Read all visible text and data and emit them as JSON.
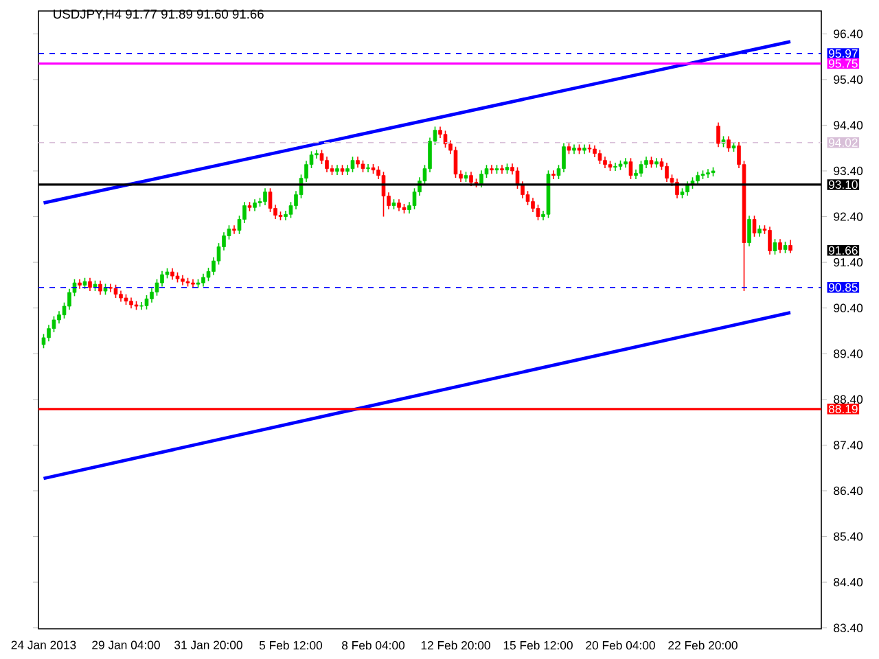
{
  "chart_data": {
    "type": "candlestick",
    "title": "USDJPY,H4 91.77 91.89 91.60 91.66",
    "categories": [
      "24 Jan 2013",
      null,
      null,
      null,
      null,
      null,
      null,
      null,
      null,
      null,
      null,
      null,
      null,
      null,
      null,
      null,
      "29 Jan 04:00",
      null,
      null,
      null,
      null,
      null,
      null,
      null,
      null,
      null,
      null,
      null,
      null,
      null,
      null,
      null,
      "31 Jan 20:00",
      null,
      null,
      null,
      null,
      null,
      null,
      null,
      null,
      null,
      null,
      null,
      null,
      null,
      null,
      null,
      "5 Feb 12:00",
      null,
      null,
      null,
      null,
      null,
      null,
      null,
      null,
      null,
      null,
      null,
      null,
      null,
      null,
      null,
      "8 Feb 04:00",
      null,
      null,
      null,
      null,
      null,
      null,
      null,
      null,
      null,
      null,
      null,
      null,
      null,
      null,
      null,
      "12 Feb 20:00",
      null,
      null,
      null,
      null,
      null,
      null,
      null,
      null,
      null,
      null,
      null,
      null,
      null,
      null,
      null,
      "15 Feb 12:00",
      null,
      null,
      null,
      null,
      null,
      null,
      null,
      null,
      null,
      null,
      null,
      null,
      null,
      null,
      null,
      "20 Feb 04:00",
      null,
      null,
      null,
      null,
      null,
      null,
      null,
      null,
      null,
      null,
      null,
      null,
      null,
      null,
      null,
      "22 Feb 20:00",
      null,
      null,
      null,
      null,
      null,
      null,
      null,
      null,
      null,
      null,
      null,
      null,
      null,
      null,
      null,
      null,
      null
    ],
    "ohlc": [
      [
        89.6,
        89.83,
        89.52,
        89.75
      ],
      [
        89.75,
        90.03,
        89.67,
        89.95
      ],
      [
        89.95,
        90.22,
        89.87,
        90.14
      ],
      [
        90.14,
        90.33,
        90.06,
        90.25
      ],
      [
        90.25,
        90.52,
        90.17,
        90.44
      ],
      [
        90.44,
        90.82,
        90.36,
        90.74
      ],
      [
        90.74,
        91.03,
        90.66,
        90.95
      ],
      [
        90.95,
        91.03,
        90.82,
        90.9
      ],
      [
        90.9,
        91.06,
        90.82,
        90.98
      ],
      [
        90.98,
        91.06,
        90.77,
        90.85
      ],
      [
        90.85,
        91.0,
        90.77,
        90.92
      ],
      [
        90.92,
        91.0,
        90.69,
        90.77
      ],
      [
        90.77,
        90.93,
        90.69,
        90.85
      ],
      [
        90.85,
        90.93,
        90.75,
        90.83
      ],
      [
        90.83,
        90.91,
        90.62,
        90.7
      ],
      [
        90.7,
        90.78,
        90.54,
        90.62
      ],
      [
        90.62,
        90.7,
        90.47,
        90.55
      ],
      [
        90.55,
        90.63,
        90.39,
        90.47
      ],
      [
        90.47,
        90.55,
        90.36,
        90.44
      ],
      [
        90.44,
        90.53,
        90.36,
        90.45
      ],
      [
        90.45,
        90.68,
        90.37,
        90.6
      ],
      [
        90.6,
        90.83,
        90.52,
        90.75
      ],
      [
        90.75,
        91.03,
        90.67,
        90.95
      ],
      [
        90.95,
        91.21,
        90.87,
        91.13
      ],
      [
        91.13,
        91.27,
        91.05,
        91.19
      ],
      [
        91.19,
        91.27,
        91.02,
        91.1
      ],
      [
        91.1,
        91.18,
        90.96,
        91.04
      ],
      [
        91.04,
        91.12,
        90.9,
        90.98
      ],
      [
        90.98,
        91.06,
        90.87,
        90.95
      ],
      [
        90.95,
        91.03,
        90.84,
        90.92
      ],
      [
        90.92,
        91.03,
        90.84,
        90.95
      ],
      [
        90.95,
        91.15,
        90.87,
        91.07
      ],
      [
        91.07,
        91.28,
        90.99,
        91.2
      ],
      [
        91.2,
        91.51,
        91.12,
        91.43
      ],
      [
        91.43,
        91.82,
        91.35,
        91.74
      ],
      [
        91.74,
        92.06,
        91.66,
        91.98
      ],
      [
        91.98,
        92.21,
        91.9,
        92.13
      ],
      [
        92.13,
        92.21,
        92.02,
        92.1
      ],
      [
        92.1,
        92.42,
        92.02,
        92.34
      ],
      [
        92.34,
        92.72,
        92.26,
        92.64
      ],
      [
        92.64,
        92.72,
        92.52,
        92.6
      ],
      [
        92.6,
        92.78,
        92.52,
        92.7
      ],
      [
        92.7,
        92.81,
        92.62,
        92.73
      ],
      [
        92.73,
        93.02,
        92.65,
        92.94
      ],
      [
        92.94,
        93.02,
        92.5,
        92.58
      ],
      [
        92.58,
        92.66,
        92.35,
        92.43
      ],
      [
        92.43,
        92.51,
        92.32,
        92.4
      ],
      [
        92.4,
        92.53,
        92.32,
        92.45
      ],
      [
        92.45,
        92.72,
        92.37,
        92.64
      ],
      [
        92.64,
        92.96,
        92.56,
        92.88
      ],
      [
        92.88,
        93.32,
        92.8,
        93.24
      ],
      [
        93.24,
        93.62,
        93.16,
        93.54
      ],
      [
        93.54,
        93.83,
        93.46,
        93.75
      ],
      [
        93.75,
        93.86,
        93.67,
        93.78
      ],
      [
        93.78,
        93.86,
        93.55,
        93.63
      ],
      [
        93.63,
        93.71,
        93.37,
        93.45
      ],
      [
        93.45,
        93.53,
        93.31,
        93.39
      ],
      [
        93.39,
        93.53,
        93.31,
        93.45
      ],
      [
        93.45,
        93.53,
        93.31,
        93.39
      ],
      [
        93.39,
        93.53,
        93.31,
        93.45
      ],
      [
        93.45,
        93.71,
        93.37,
        93.63
      ],
      [
        93.63,
        93.71,
        93.47,
        93.55
      ],
      [
        93.55,
        93.63,
        93.37,
        93.45
      ],
      [
        93.45,
        93.55,
        93.37,
        93.47
      ],
      [
        93.47,
        93.55,
        93.34,
        93.42
      ],
      [
        93.42,
        93.5,
        93.22,
        93.3
      ],
      [
        93.3,
        93.38,
        92.4,
        92.85
      ],
      [
        92.85,
        92.93,
        92.56,
        92.64
      ],
      [
        92.64,
        92.78,
        92.56,
        92.7
      ],
      [
        92.7,
        92.78,
        92.52,
        92.6
      ],
      [
        92.6,
        92.68,
        92.47,
        92.55
      ],
      [
        92.55,
        92.72,
        92.47,
        92.64
      ],
      [
        92.64,
        93.02,
        92.56,
        92.94
      ],
      [
        92.94,
        93.26,
        92.86,
        93.18
      ],
      [
        93.18,
        93.53,
        93.1,
        93.45
      ],
      [
        93.45,
        94.13,
        93.37,
        94.05
      ],
      [
        94.05,
        94.37,
        93.97,
        94.29
      ],
      [
        94.29,
        94.37,
        94.12,
        94.2
      ],
      [
        94.2,
        94.28,
        93.91,
        93.99
      ],
      [
        93.99,
        94.07,
        93.77,
        93.85
      ],
      [
        93.85,
        93.93,
        93.25,
        93.33
      ],
      [
        93.33,
        93.41,
        93.16,
        93.24
      ],
      [
        93.24,
        93.38,
        93.16,
        93.3
      ],
      [
        93.3,
        93.38,
        93.07,
        93.15
      ],
      [
        93.15,
        93.23,
        93.04,
        93.12
      ],
      [
        93.12,
        93.41,
        93.04,
        93.33
      ],
      [
        93.33,
        93.53,
        93.25,
        93.45
      ],
      [
        93.45,
        93.53,
        93.34,
        93.42
      ],
      [
        93.42,
        93.53,
        93.34,
        93.45
      ],
      [
        93.45,
        93.53,
        93.34,
        93.42
      ],
      [
        93.42,
        93.56,
        93.34,
        93.48
      ],
      [
        93.48,
        93.56,
        93.32,
        93.4
      ],
      [
        93.4,
        93.48,
        93.01,
        93.09
      ],
      [
        93.09,
        93.17,
        92.8,
        92.88
      ],
      [
        92.88,
        92.96,
        92.65,
        92.73
      ],
      [
        92.73,
        92.81,
        92.5,
        92.58
      ],
      [
        92.58,
        92.66,
        92.32,
        92.4
      ],
      [
        92.4,
        92.53,
        92.32,
        92.45
      ],
      [
        92.45,
        93.41,
        92.37,
        93.33
      ],
      [
        93.33,
        93.41,
        93.22,
        93.3
      ],
      [
        93.3,
        93.53,
        93.22,
        93.45
      ],
      [
        93.45,
        94.01,
        93.37,
        93.93
      ],
      [
        93.93,
        94.01,
        93.77,
        93.85
      ],
      [
        93.85,
        93.98,
        93.77,
        93.9
      ],
      [
        93.9,
        93.98,
        93.77,
        93.85
      ],
      [
        93.85,
        93.98,
        93.77,
        93.9
      ],
      [
        93.9,
        93.98,
        93.8,
        93.88
      ],
      [
        93.88,
        93.96,
        93.7,
        93.78
      ],
      [
        93.78,
        93.86,
        93.55,
        93.63
      ],
      [
        93.63,
        93.71,
        93.46,
        93.54
      ],
      [
        93.54,
        93.62,
        93.4,
        93.48
      ],
      [
        93.48,
        93.58,
        93.4,
        93.5
      ],
      [
        93.5,
        93.63,
        93.42,
        93.55
      ],
      [
        93.55,
        93.68,
        93.47,
        93.6
      ],
      [
        93.6,
        93.68,
        93.22,
        93.3
      ],
      [
        93.3,
        93.43,
        93.22,
        93.35
      ],
      [
        93.35,
        93.62,
        93.27,
        93.54
      ],
      [
        93.54,
        93.71,
        93.46,
        93.63
      ],
      [
        93.63,
        93.71,
        93.47,
        93.55
      ],
      [
        93.55,
        93.68,
        93.47,
        93.6
      ],
      [
        93.6,
        93.68,
        93.42,
        93.5
      ],
      [
        93.5,
        93.58,
        93.16,
        93.24
      ],
      [
        93.24,
        93.32,
        93.07,
        93.15
      ],
      [
        93.15,
        93.23,
        92.8,
        92.88
      ],
      [
        92.88,
        93.02,
        92.8,
        92.94
      ],
      [
        92.94,
        93.17,
        92.86,
        93.09
      ],
      [
        93.09,
        93.26,
        93.01,
        93.18
      ],
      [
        93.18,
        93.38,
        93.1,
        93.3
      ],
      [
        93.3,
        93.41,
        93.22,
        93.33
      ],
      [
        93.33,
        93.44,
        93.25,
        93.36
      ],
      [
        93.36,
        93.48,
        93.28,
        93.4
      ],
      [
        94.38,
        94.46,
        93.92,
        94.0
      ],
      [
        94.0,
        94.16,
        93.92,
        94.08
      ],
      [
        94.08,
        94.16,
        93.82,
        93.9
      ],
      [
        93.9,
        94.03,
        93.82,
        93.95
      ],
      [
        93.95,
        94.03,
        93.46,
        93.54
      ],
      [
        93.54,
        93.62,
        90.77,
        91.83
      ],
      [
        91.83,
        92.42,
        91.75,
        92.34
      ],
      [
        92.34,
        92.42,
        91.96,
        92.04
      ],
      [
        92.04,
        92.21,
        91.96,
        92.13
      ],
      [
        92.13,
        92.21,
        92.02,
        92.1
      ],
      [
        92.1,
        92.18,
        91.57,
        91.65
      ],
      [
        91.65,
        91.91,
        91.57,
        91.83
      ],
      [
        91.83,
        91.91,
        91.6,
        91.68
      ],
      [
        91.68,
        91.85,
        91.6,
        91.77
      ],
      [
        91.77,
        91.89,
        91.6,
        91.66
      ]
    ],
    "series": [
      {
        "type": "line",
        "color": "#0000ff",
        "values": [
          92.7,
          null,
          null,
          null,
          null,
          null,
          null,
          null,
          null,
          null,
          null,
          null,
          null,
          null,
          null,
          null,
          null,
          null,
          null,
          null,
          null,
          null,
          null,
          null,
          null,
          null,
          null,
          null,
          null,
          null,
          null,
          null,
          null,
          null,
          null,
          null,
          null,
          null,
          null,
          null,
          null,
          null,
          null,
          null,
          null,
          null,
          null,
          null,
          null,
          null,
          null,
          null,
          null,
          null,
          null,
          null,
          null,
          null,
          null,
          null,
          null,
          null,
          null,
          null,
          null,
          null,
          null,
          null,
          null,
          null,
          null,
          null,
          null,
          null,
          null,
          null,
          null,
          null,
          null,
          null,
          null,
          null,
          null,
          null,
          null,
          null,
          null,
          null,
          null,
          null,
          null,
          null,
          null,
          null,
          null,
          null,
          null,
          null,
          null,
          null,
          null,
          null,
          null,
          null,
          null,
          null,
          null,
          null,
          null,
          null,
          null,
          null,
          null,
          null,
          null,
          null,
          null,
          null,
          null,
          null,
          null,
          null,
          null,
          null,
          null,
          null,
          null,
          null,
          null,
          null,
          null,
          null,
          null,
          null,
          null,
          null,
          null,
          null,
          null,
          null,
          null,
          null,
          null,
          null,
          null,
          96.23
        ]
      },
      {
        "type": "line",
        "color": "#0000ff",
        "values": [
          86.67,
          null,
          null,
          null,
          null,
          null,
          null,
          null,
          null,
          null,
          null,
          null,
          null,
          null,
          null,
          null,
          null,
          null,
          null,
          null,
          null,
          null,
          null,
          null,
          null,
          null,
          null,
          null,
          null,
          null,
          null,
          null,
          null,
          null,
          null,
          null,
          null,
          null,
          null,
          null,
          null,
          null,
          null,
          null,
          null,
          null,
          null,
          null,
          null,
          null,
          null,
          null,
          null,
          null,
          null,
          null,
          null,
          null,
          null,
          null,
          null,
          null,
          null,
          null,
          null,
          null,
          null,
          null,
          null,
          null,
          null,
          null,
          null,
          null,
          null,
          null,
          null,
          null,
          null,
          null,
          null,
          null,
          null,
          null,
          null,
          null,
          null,
          null,
          null,
          null,
          null,
          null,
          null,
          null,
          null,
          null,
          null,
          null,
          null,
          null,
          null,
          null,
          null,
          null,
          null,
          null,
          null,
          null,
          null,
          null,
          null,
          null,
          null,
          null,
          null,
          null,
          null,
          null,
          null,
          null,
          null,
          null,
          null,
          null,
          null,
          null,
          null,
          null,
          null,
          null,
          null,
          null,
          null,
          null,
          null,
          null,
          null,
          null,
          null,
          null,
          null,
          null,
          null,
          null,
          null,
          90.3
        ]
      }
    ],
    "ylim": [
      83.38,
      96.9
    ],
    "yticks": [
      {
        "value": 83.4,
        "label": "83.40"
      },
      {
        "value": 84.4,
        "label": "84.40"
      },
      {
        "value": 85.4,
        "label": "85.40"
      },
      {
        "value": 86.4,
        "label": "86.40"
      },
      {
        "value": 87.4,
        "label": "87.40"
      },
      {
        "value": 88.4,
        "label": "88.40"
      },
      {
        "value": 89.4,
        "label": "89.40"
      },
      {
        "value": 90.4,
        "label": "90.40"
      },
      {
        "value": 91.4,
        "label": "91.40"
      },
      {
        "value": 92.4,
        "label": "92.40"
      },
      {
        "value": 93.4,
        "label": "93.40"
      },
      {
        "value": 94.4,
        "label": "94.40"
      },
      {
        "value": 95.4,
        "label": "95.40"
      },
      {
        "value": 96.4,
        "label": "96.40"
      }
    ],
    "ref_lines": [
      {
        "axis": "y",
        "value": 95.97,
        "label": "95.97",
        "color": "#0000ff",
        "line_style": "dashed"
      },
      {
        "axis": "y",
        "value": 95.75,
        "label": "95.75",
        "color": "#ff00ff",
        "line_style": "solid"
      },
      {
        "axis": "y",
        "value": 94.02,
        "label": "94.02",
        "color": "#d8bfd8",
        "line_style": "dashed"
      },
      {
        "axis": "y",
        "value": 93.1,
        "label": "93.10",
        "color": "#000000",
        "line_style": "solid"
      },
      {
        "axis": "y",
        "value": 90.85,
        "label": "90.85",
        "color": "#0000ff",
        "line_style": "dashed"
      },
      {
        "axis": "y",
        "value": 88.19,
        "label": "88.19",
        "color": "#ff0000",
        "line_style": "solid"
      }
    ],
    "annotations": [
      "91.66"
    ]
  }
}
